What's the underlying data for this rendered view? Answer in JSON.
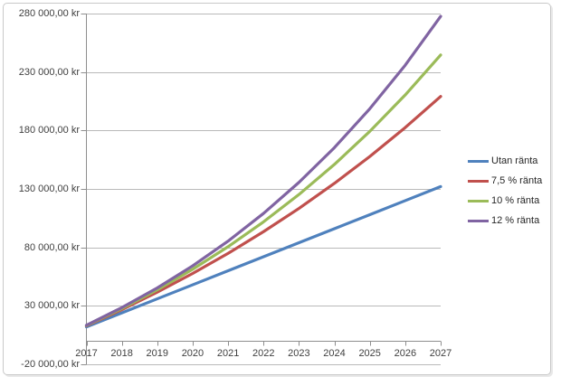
{
  "chart_data": {
    "type": "line",
    "title": "",
    "x": [
      2017,
      2018,
      2019,
      2020,
      2021,
      2022,
      2023,
      2024,
      2025,
      2026,
      2027
    ],
    "x_axis": {
      "tick_labels": [
        "2017",
        "2018",
        "2019",
        "2020",
        "2021",
        "2022",
        "2023",
        "2024",
        "2025",
        "2026",
        "2027"
      ]
    },
    "y_axis": {
      "min": -20000,
      "max": 280000,
      "tick_step": 50000,
      "tick_values": [
        280000,
        230000,
        180000,
        130000,
        80000,
        30000,
        -20000
      ],
      "tick_labels": [
        "280 000,00 kr",
        "230 000,00 kr",
        "180 000,00 kr",
        "130 000,00 kr",
        "80 000,00 kr",
        "30 000,00 kr",
        "-20 000,00 kr"
      ]
    },
    "series": [
      {
        "name": "Utan ränta",
        "color": "#4F81BD",
        "values": [
          12000,
          24000,
          36000,
          48000,
          60000,
          72000,
          84000,
          96000,
          108000,
          120000,
          132000
        ]
      },
      {
        "name": "7,5 % ränta",
        "color": "#C0504D",
        "values": [
          12900,
          26768,
          41675,
          57701,
          74928,
          93448,
          113356,
          134758,
          157765,
          182497,
          209085
        ]
      },
      {
        "name": "10 % ränta",
        "color": "#9BBB59",
        "values": [
          13200,
          27720,
          43692,
          61261,
          80587,
          101846,
          125231,
          150954,
          179249,
          210374,
          244611
        ]
      },
      {
        "name": "12 % ränta",
        "color": "#8064A2",
        "values": [
          13440,
          28493,
          45352,
          64234,
          85382,
          109068,
          135596,
          165308,
          198585,
          235855,
          277598
        ]
      }
    ],
    "legend": {
      "position": "right"
    },
    "grid": true,
    "colors": {
      "gridline": "#b9b9b9",
      "axis": "#8e8e8e",
      "tick_text": "#3f3f3f",
      "frame_border": "#c9c9c9"
    }
  }
}
